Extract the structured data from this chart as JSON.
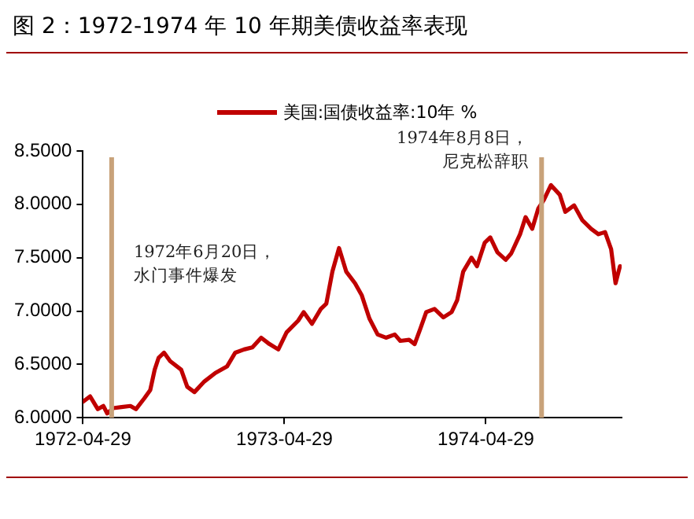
{
  "chart_data": {
    "type": "line",
    "title": "图 2：1972-1974 年 10 年期美债收益率表现",
    "x": [
      "1972-04-29",
      "1972-05-12",
      "1972-05-26",
      "1972-06-05",
      "1972-06-12",
      "1972-06-23",
      "1972-07-08",
      "1972-07-24",
      "1972-08-03",
      "1972-08-18",
      "1972-08-29",
      "1972-09-06",
      "1972-09-13",
      "1972-09-23",
      "1972-10-04",
      "1972-10-24",
      "1972-11-04",
      "1972-11-17",
      "1972-12-05",
      "1972-12-25",
      "1973-01-15",
      "1973-01-30",
      "1973-02-15",
      "1973-03-02",
      "1973-03-18",
      "1973-04-02",
      "1973-04-18",
      "1973-05-03",
      "1973-05-24",
      "1973-06-03",
      "1973-06-18",
      "1973-07-04",
      "1973-07-14",
      "1973-07-25",
      "1973-08-06",
      "1973-08-19",
      "1973-09-04",
      "1973-09-16",
      "1973-09-30",
      "1973-10-15",
      "1973-10-30",
      "1973-11-15",
      "1973-11-25",
      "1973-12-11",
      "1973-12-21",
      "1973-12-31",
      "1974-01-11",
      "1974-01-26",
      "1974-02-11",
      "1974-02-26",
      "1974-03-08",
      "1974-03-19",
      "1974-04-03",
      "1974-04-13",
      "1974-04-27",
      "1974-05-07",
      "1974-05-20",
      "1974-06-04",
      "1974-06-14",
      "1974-06-30",
      "1974-07-10",
      "1974-07-22",
      "1974-08-02",
      "1974-08-12",
      "1974-08-25",
      "1974-09-10",
      "1974-09-20",
      "1974-10-06",
      "1974-10-21",
      "1974-11-06",
      "1974-11-19",
      "1974-12-01",
      "1974-12-12",
      "1974-12-20",
      "1974-12-28"
    ],
    "series": [
      {
        "name": "美国:国债收益率:10年 %",
        "color": "#c00000",
        "values": [
          6.15,
          6.2,
          6.08,
          6.11,
          6.04,
          6.09,
          6.1,
          6.11,
          6.08,
          6.18,
          6.26,
          6.45,
          6.56,
          6.61,
          6.53,
          6.45,
          6.29,
          6.24,
          6.34,
          6.42,
          6.48,
          6.61,
          6.64,
          6.66,
          6.75,
          6.69,
          6.64,
          6.8,
          6.91,
          6.99,
          6.88,
          7.02,
          7.07,
          7.37,
          7.59,
          7.37,
          7.26,
          7.15,
          6.93,
          6.78,
          6.75,
          6.78,
          6.72,
          6.73,
          6.69,
          6.83,
          6.99,
          7.02,
          6.94,
          6.99,
          7.1,
          7.37,
          7.5,
          7.42,
          7.64,
          7.69,
          7.55,
          7.48,
          7.54,
          7.72,
          7.88,
          7.77,
          7.96,
          8.04,
          8.18,
          8.09,
          7.93,
          7.99,
          7.85,
          7.77,
          7.72,
          7.74,
          7.58,
          7.26,
          7.42
        ]
      }
    ],
    "xlim": [
      "1972-04-29",
      "1974-12-31"
    ],
    "xticks": [
      "1972-04-29",
      "1973-04-29",
      "1974-04-29"
    ],
    "ylim": [
      6,
      8.5
    ],
    "yticks": [
      {
        "value": 6,
        "label": "6.0000"
      },
      {
        "value": 6.5,
        "label": "6.5000"
      },
      {
        "value": 7,
        "label": "7.0000"
      },
      {
        "value": 7.5,
        "label": "7.5000"
      },
      {
        "value": 8,
        "label": "8.0000"
      },
      {
        "value": 8.5,
        "label": "8.5000"
      }
    ],
    "ref_lines": [
      {
        "axis": "x",
        "value": "1972-06-20",
        "label": "1972年6月20日，水门事件爆发",
        "color": "#c8a27a"
      },
      {
        "axis": "x",
        "value": "1974-08-08",
        "label": "1974年8月8日，尼克松辞职",
        "color": "#c8a27a"
      }
    ],
    "legend": "top",
    "grid": false,
    "marker": "none",
    "line_style": "solid"
  }
}
